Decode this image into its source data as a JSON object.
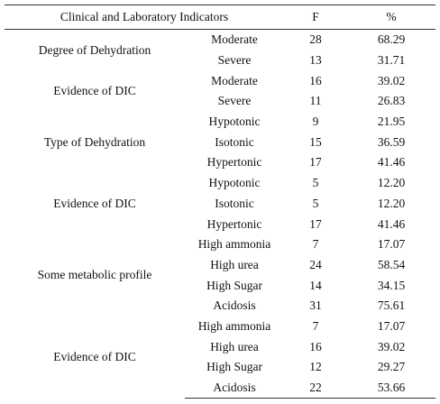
{
  "table": {
    "headers": {
      "indicator": "Clinical and Laboratory Indicators",
      "f": "F",
      "pct": "%"
    },
    "groups": [
      {
        "label": "Degree of Dehydration",
        "rows": [
          {
            "sub": "Moderate",
            "f": "28",
            "pct": "68.29"
          },
          {
            "sub": "Severe",
            "f": "13",
            "pct": "31.71"
          }
        ]
      },
      {
        "label": "Evidence of DIC",
        "rows": [
          {
            "sub": "Moderate",
            "f": "16",
            "pct": "39.02"
          },
          {
            "sub": "Severe",
            "f": "11",
            "pct": "26.83"
          }
        ]
      },
      {
        "label": "Type of Dehydration",
        "rows": [
          {
            "sub": "Hypotonic",
            "f": "9",
            "pct": "21.95"
          },
          {
            "sub": "Isotonic",
            "f": "15",
            "pct": "36.59"
          },
          {
            "sub": "Hypertonic",
            "f": "17",
            "pct": "41.46"
          }
        ]
      },
      {
        "label": "Evidence of DIC",
        "rows": [
          {
            "sub": "Hypotonic",
            "f": "5",
            "pct": "12.20"
          },
          {
            "sub": "Isotonic",
            "f": "5",
            "pct": "12.20"
          },
          {
            "sub": "Hypertonic",
            "f": "17",
            "pct": "41.46"
          }
        ]
      },
      {
        "label": "Some metabolic profile",
        "rows": [
          {
            "sub": "High ammonia",
            "f": "7",
            "pct": "17.07"
          },
          {
            "sub": "High urea",
            "f": "24",
            "pct": "58.54"
          },
          {
            "sub": "High Sugar",
            "f": "14",
            "pct": "34.15"
          },
          {
            "sub": "Acidosis",
            "f": "31",
            "pct": "75.61"
          }
        ]
      },
      {
        "label": "Evidence of DIC",
        "rows": [
          {
            "sub": "High ammonia",
            "f": "7",
            "pct": "17.07"
          },
          {
            "sub": "High urea",
            "f": "16",
            "pct": "39.02"
          },
          {
            "sub": "High Sugar",
            "f": "12",
            "pct": "29.27"
          },
          {
            "sub": "Acidosis",
            "f": "22",
            "pct": "53.66"
          }
        ]
      }
    ]
  }
}
